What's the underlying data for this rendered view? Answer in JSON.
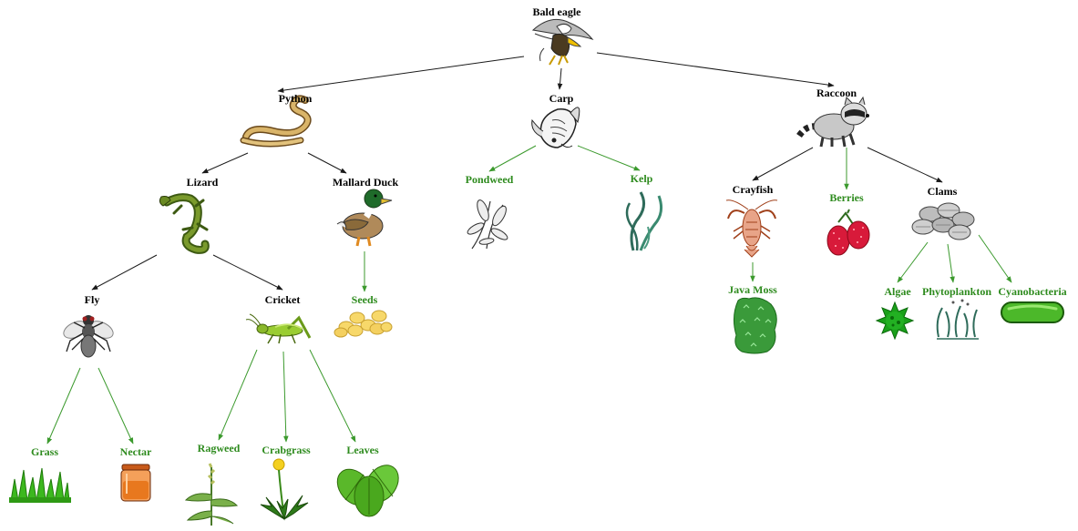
{
  "colors": {
    "animal": "#000000",
    "plant": "#2e8b1e",
    "animal_arrow": "#1a1a1a",
    "plant_arrow": "#3c9a2e"
  },
  "nodes": {
    "bald_eagle": {
      "label": "Bald eagle",
      "kind": "animal",
      "icon": "eagle-icon"
    },
    "python": {
      "label": "Python",
      "kind": "animal",
      "icon": "snake-icon"
    },
    "carp": {
      "label": "Carp",
      "kind": "animal",
      "icon": "fish-icon"
    },
    "raccoon": {
      "label": "Raccoon",
      "kind": "animal",
      "icon": "raccoon-icon"
    },
    "lizard": {
      "label": "Lizard",
      "kind": "animal",
      "icon": "lizard-icon"
    },
    "mallard_duck": {
      "label": "Mallard Duck",
      "kind": "animal",
      "icon": "duck-icon"
    },
    "pondweed": {
      "label": "Pondweed",
      "kind": "plant",
      "icon": "pondweed-icon"
    },
    "kelp": {
      "label": "Kelp",
      "kind": "plant",
      "icon": "kelp-icon"
    },
    "crayfish": {
      "label": "Crayfish",
      "kind": "animal",
      "icon": "crayfish-icon"
    },
    "berries": {
      "label": "Berries",
      "kind": "plant",
      "icon": "berries-icon"
    },
    "clams": {
      "label": "Clams",
      "kind": "animal",
      "icon": "clams-icon"
    },
    "fly": {
      "label": "Fly",
      "kind": "animal",
      "icon": "fly-icon"
    },
    "cricket": {
      "label": "Cricket",
      "kind": "animal",
      "icon": "cricket-icon"
    },
    "seeds": {
      "label": "Seeds",
      "kind": "plant",
      "icon": "seeds-icon"
    },
    "java_moss": {
      "label": "Java Moss",
      "kind": "plant",
      "icon": "moss-icon"
    },
    "algae": {
      "label": "Algae",
      "kind": "plant",
      "icon": "algae-icon"
    },
    "phytoplankton": {
      "label": "Phytoplankton",
      "kind": "plant",
      "icon": "phytoplankton-icon"
    },
    "cyanobacteria": {
      "label": "Cyanobacteria",
      "kind": "plant",
      "icon": "cyanobacteria-icon"
    },
    "grass": {
      "label": "Grass",
      "kind": "plant",
      "icon": "grass-icon"
    },
    "nectar": {
      "label": "Nectar",
      "kind": "plant",
      "icon": "nectar-jar-icon"
    },
    "ragweed": {
      "label": "Ragweed",
      "kind": "plant",
      "icon": "ragweed-icon"
    },
    "crabgrass": {
      "label": "Crabgrass",
      "kind": "plant",
      "icon": "dandelion-icon"
    },
    "leaves": {
      "label": "Leaves",
      "kind": "plant",
      "icon": "leaves-icon"
    }
  },
  "edges": [
    {
      "from": "bald_eagle",
      "to": "python"
    },
    {
      "from": "bald_eagle",
      "to": "carp"
    },
    {
      "from": "bald_eagle",
      "to": "raccoon"
    },
    {
      "from": "python",
      "to": "lizard"
    },
    {
      "from": "python",
      "to": "mallard_duck"
    },
    {
      "from": "carp",
      "to": "pondweed"
    },
    {
      "from": "carp",
      "to": "kelp"
    },
    {
      "from": "raccoon",
      "to": "crayfish"
    },
    {
      "from": "raccoon",
      "to": "berries"
    },
    {
      "from": "raccoon",
      "to": "clams"
    },
    {
      "from": "lizard",
      "to": "fly"
    },
    {
      "from": "lizard",
      "to": "cricket"
    },
    {
      "from": "mallard_duck",
      "to": "seeds"
    },
    {
      "from": "crayfish",
      "to": "java_moss"
    },
    {
      "from": "clams",
      "to": "algae"
    },
    {
      "from": "clams",
      "to": "phytoplankton"
    },
    {
      "from": "clams",
      "to": "cyanobacteria"
    },
    {
      "from": "fly",
      "to": "grass"
    },
    {
      "from": "fly",
      "to": "nectar"
    },
    {
      "from": "cricket",
      "to": "ragweed"
    },
    {
      "from": "cricket",
      "to": "crabgrass"
    },
    {
      "from": "cricket",
      "to": "leaves"
    }
  ]
}
